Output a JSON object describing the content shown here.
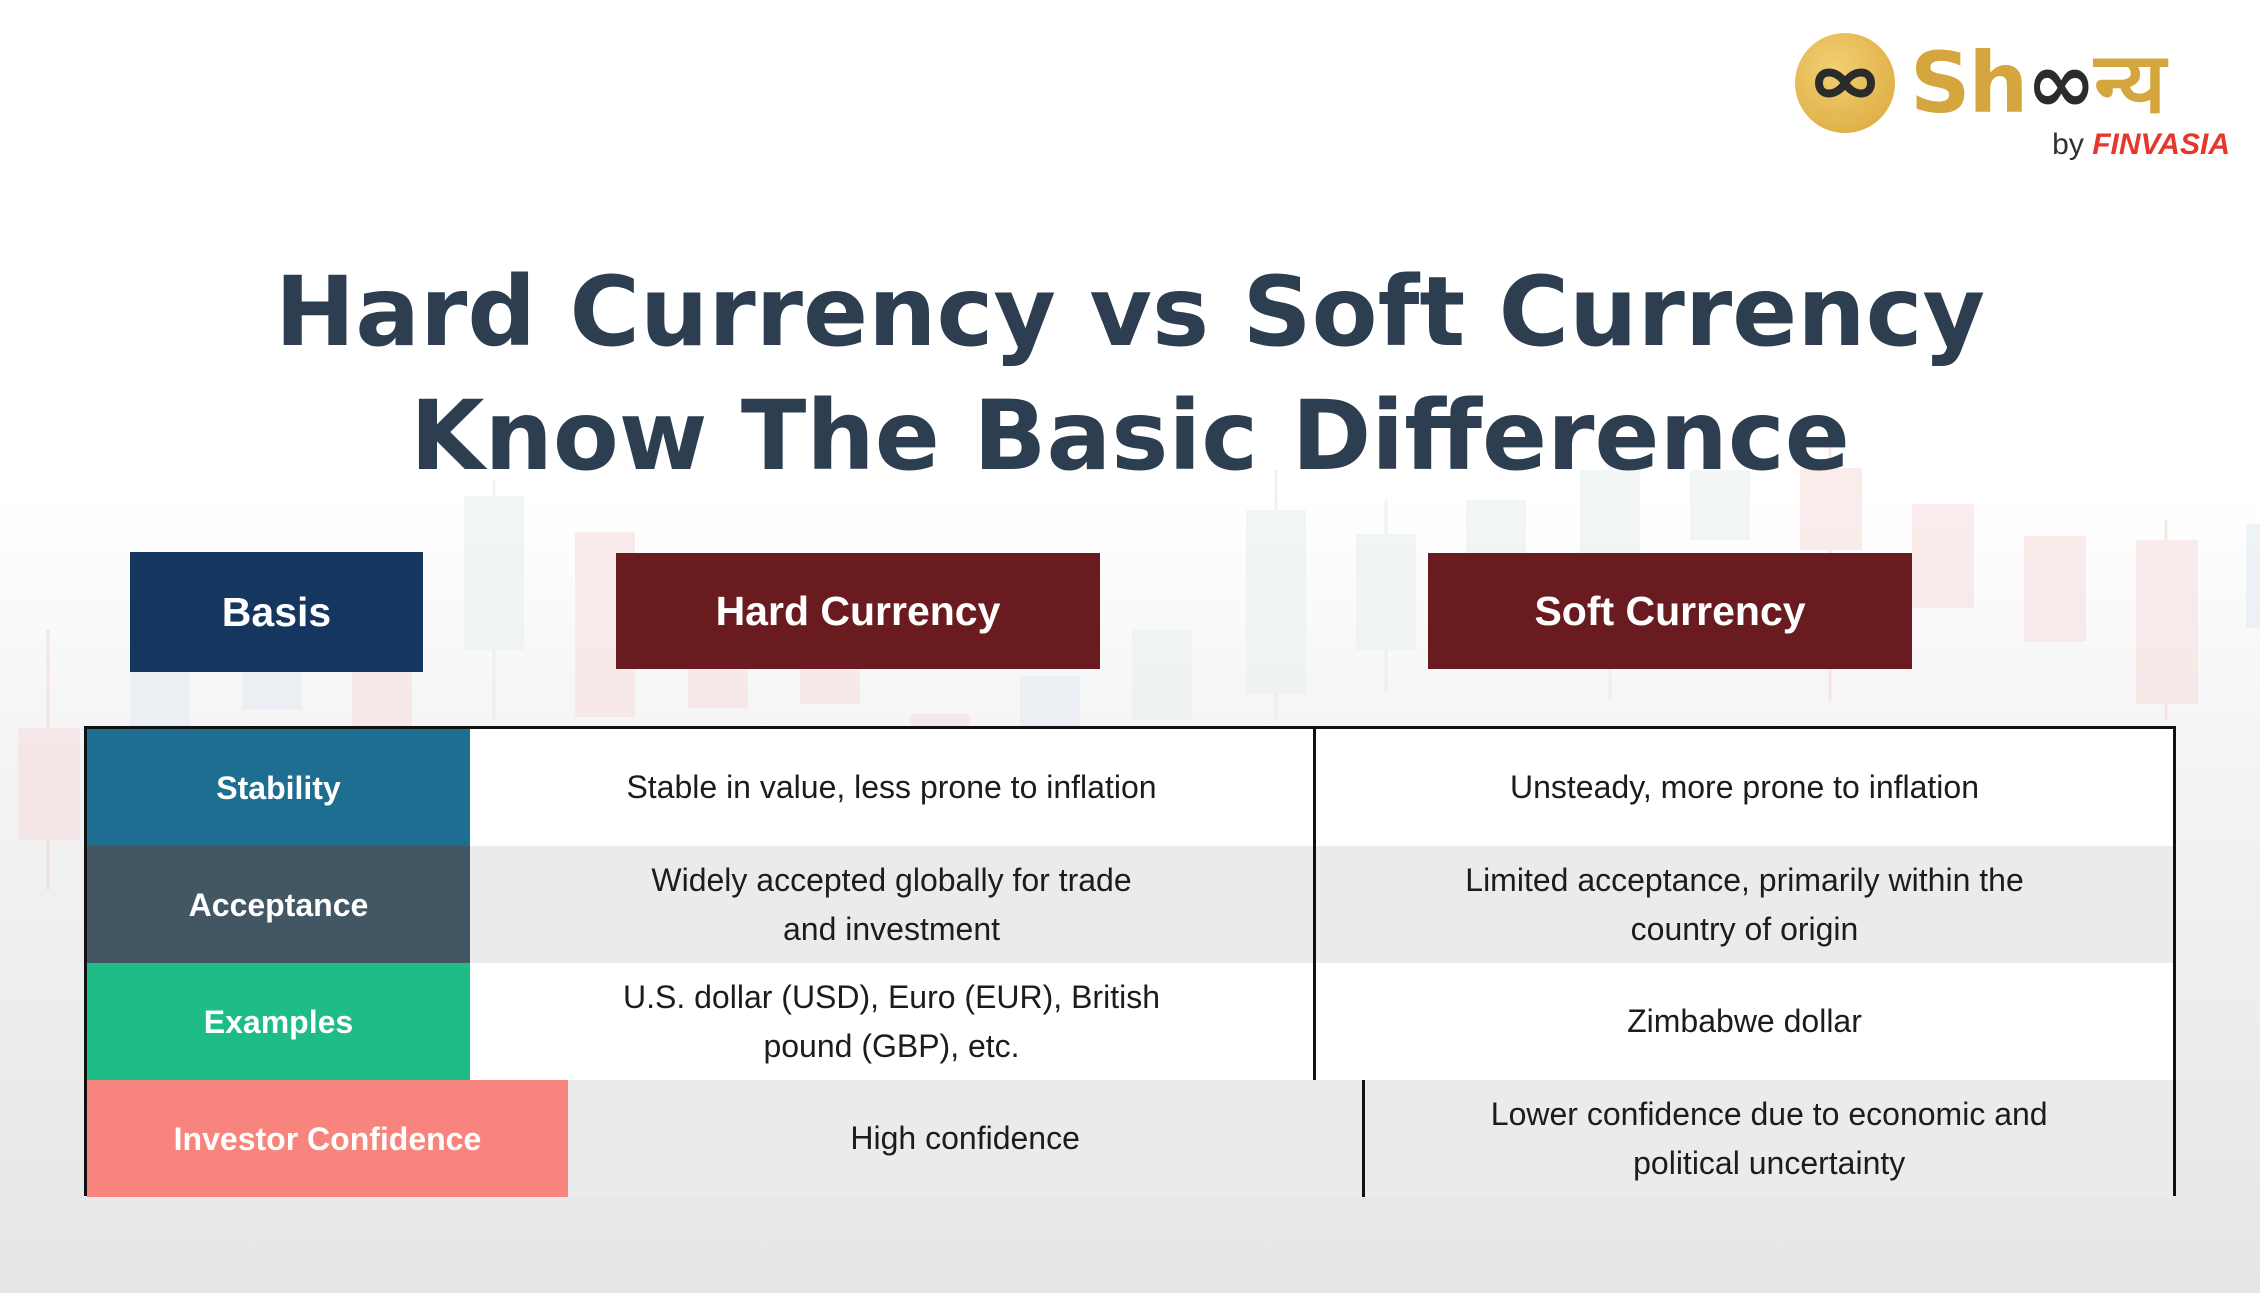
{
  "logo": {
    "word_light": "Sh",
    "word_dark": "∞",
    "word_tail": "न्य",
    "by_label": "by",
    "brand": "FINVASIA"
  },
  "title": {
    "line1": "Hard Currency vs Soft Currency",
    "line2": "Know The Basic Difference"
  },
  "table": {
    "headers": {
      "basis": "Basis",
      "hard": "Hard Currency",
      "soft": "Soft Currency"
    },
    "rows": [
      {
        "basis": "Stability",
        "color": "#1e6e92",
        "hard": "Stable in value, less prone to inflation",
        "soft": "Unsteady, more prone to inflation"
      },
      {
        "basis": "Acceptance",
        "color": "#435663",
        "hard": "Widely accepted globally for trade and investment",
        "soft": "Limited acceptance, primarily within the country of origin"
      },
      {
        "basis": "Examples",
        "color": "#1ebc87",
        "hard": "U.S. dollar (USD), Euro (EUR), British pound (GBP), etc.",
        "soft": "Zimbabwe dollar"
      },
      {
        "basis": "Investor Confidence",
        "color": "#f7857d",
        "hard": "High confidence",
        "soft": "Lower confidence due to economic and political uncertainty"
      }
    ]
  },
  "colors": {
    "title": "#2c3e50",
    "basis_header": "#15365f",
    "currency_header": "#6a1b1f",
    "logo_gold": "#d6a63e"
  }
}
